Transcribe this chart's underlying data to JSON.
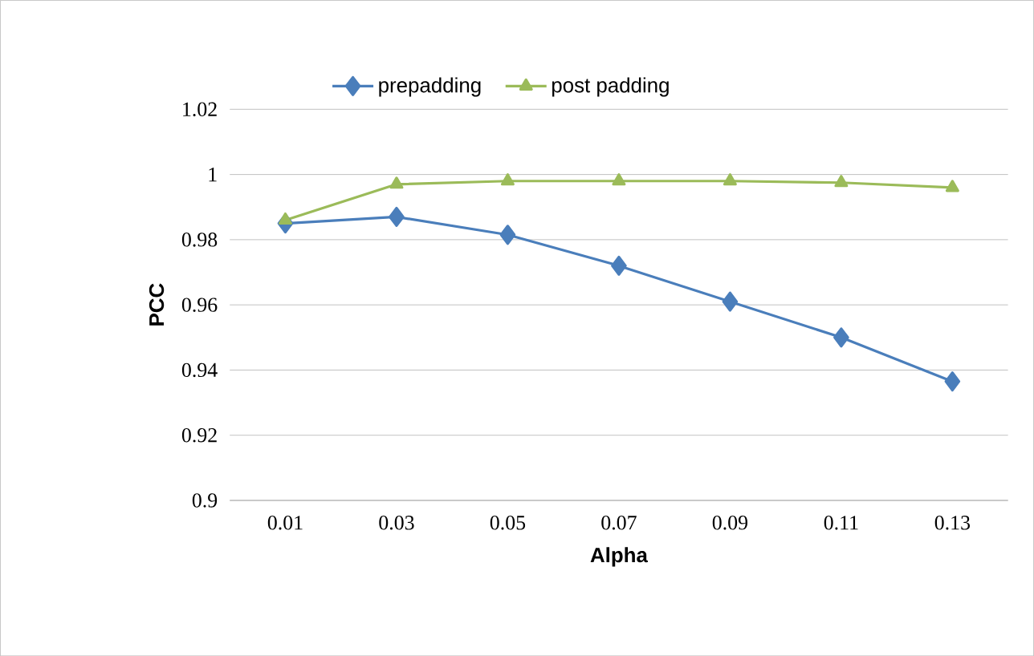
{
  "chart_data": {
    "type": "line",
    "xlabel": "Alpha",
    "ylabel": "PCC",
    "categories": [
      "0.01",
      "0.03",
      "0.05",
      "0.07",
      "0.09",
      "0.11",
      "0.13"
    ],
    "series": [
      {
        "name": "prepadding",
        "color": "#4a7ebb",
        "marker": "diamond",
        "values": [
          0.985,
          0.987,
          0.9815,
          0.972,
          0.961,
          0.95,
          0.9365
        ]
      },
      {
        "name": "post padding",
        "color": "#9bbb59",
        "marker": "triangle",
        "values": [
          0.986,
          0.997,
          0.998,
          0.998,
          0.998,
          0.9975,
          0.996
        ]
      }
    ],
    "ylim": [
      0.9,
      1.02
    ],
    "yticks": [
      0.9,
      0.92,
      0.94,
      0.96,
      0.98,
      1,
      1.02
    ],
    "grid": "y",
    "legend": "top",
    "line_style": "solid"
  }
}
